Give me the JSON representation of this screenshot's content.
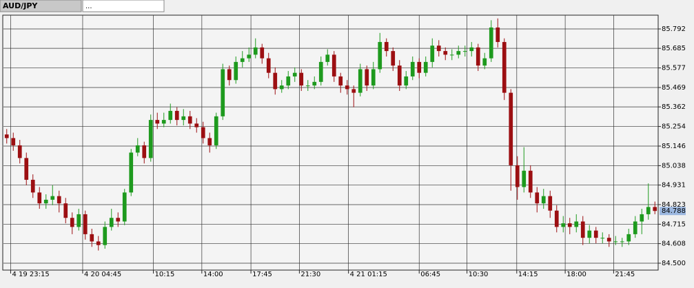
{
  "tabs": [
    "AUD/JPY",
    "..."
  ],
  "chart_data": {
    "type": "candlestick",
    "open": [
      85.21,
      85.19,
      85.15,
      85.08,
      84.96,
      84.89,
      84.83,
      84.85,
      84.87,
      84.83,
      84.75,
      84.7,
      84.77,
      84.66,
      84.62,
      84.6,
      84.7,
      84.75,
      84.73,
      84.89,
      85.11,
      85.15,
      85.08,
      85.29,
      85.27,
      85.29,
      85.34,
      85.29,
      85.31,
      85.27,
      85.25,
      85.19,
      85.15,
      85.31,
      85.57,
      85.51,
      85.61,
      85.63,
      85.65,
      85.69,
      85.63,
      85.55,
      85.46,
      85.48,
      85.53,
      85.55,
      85.48,
      85.48,
      85.5,
      85.61,
      85.65,
      85.53,
      85.48,
      85.46,
      85.44,
      85.57,
      85.48,
      85.57,
      85.72,
      85.67,
      85.59,
      85.48,
      85.53,
      85.61,
      85.55,
      85.61,
      85.7,
      85.67,
      85.65,
      85.65,
      85.67,
      85.67,
      85.69,
      85.59,
      85.63,
      85.8,
      85.72,
      85.44,
      85.04,
      84.92,
      85.01,
      84.89,
      84.83,
      84.87,
      84.79,
      84.7,
      84.72,
      84.7,
      84.73,
      84.64,
      84.68,
      84.64,
      84.64,
      84.62,
      84.62,
      84.62,
      84.66,
      84.73,
      84.77,
      84.81
    ],
    "high": [
      85.24,
      85.22,
      85.18,
      85.11,
      84.99,
      84.92,
      84.88,
      84.93,
      84.9,
      84.86,
      84.78,
      84.8,
      84.79,
      84.69,
      84.65,
      84.73,
      84.8,
      84.78,
      84.91,
      85.13,
      85.19,
      85.17,
      85.32,
      85.33,
      85.33,
      85.38,
      85.36,
      85.35,
      85.34,
      85.3,
      85.28,
      85.22,
      85.33,
      85.6,
      85.59,
      85.64,
      85.67,
      85.69,
      85.74,
      85.71,
      85.66,
      85.58,
      85.51,
      85.56,
      85.58,
      85.57,
      85.51,
      85.53,
      85.64,
      85.68,
      85.67,
      85.55,
      85.51,
      85.48,
      85.6,
      85.59,
      85.61,
      85.77,
      85.74,
      85.69,
      85.62,
      85.56,
      85.64,
      85.63,
      85.64,
      85.74,
      85.73,
      85.69,
      85.68,
      85.7,
      85.7,
      85.72,
      85.71,
      85.66,
      85.84,
      85.85,
      85.74,
      85.46,
      85.09,
      85.14,
      85.04,
      84.92,
      84.91,
      84.9,
      84.82,
      84.76,
      84.75,
      84.77,
      84.76,
      84.71,
      84.7,
      84.67,
      84.66,
      84.65,
      84.64,
      84.69,
      84.76,
      84.8,
      84.94,
      84.84
    ],
    "low": [
      85.16,
      85.12,
      85.05,
      84.93,
      84.86,
      84.8,
      84.8,
      84.82,
      84.78,
      84.72,
      84.66,
      84.68,
      84.63,
      84.59,
      84.57,
      84.58,
      84.68,
      84.7,
      84.71,
      84.87,
      85.09,
      85.05,
      85.06,
      85.24,
      85.25,
      85.27,
      85.26,
      85.26,
      85.24,
      85.22,
      85.16,
      85.11,
      85.13,
      85.29,
      85.48,
      85.49,
      85.58,
      85.61,
      85.63,
      85.6,
      85.52,
      85.43,
      85.44,
      85.46,
      85.5,
      85.45,
      85.45,
      85.46,
      85.48,
      85.59,
      85.5,
      85.44,
      85.43,
      85.36,
      85.42,
      85.45,
      85.46,
      85.55,
      85.64,
      85.56,
      85.45,
      85.46,
      85.51,
      85.52,
      85.53,
      85.58,
      85.64,
      85.62,
      85.62,
      85.63,
      85.64,
      85.64,
      85.56,
      85.57,
      85.61,
      85.69,
      85.4,
      84.9,
      84.85,
      84.89,
      84.86,
      84.78,
      84.8,
      84.75,
      84.67,
      84.67,
      84.66,
      84.67,
      84.6,
      84.61,
      84.61,
      84.61,
      84.59,
      84.6,
      84.59,
      84.6,
      84.64,
      84.66,
      84.74,
      84.77
    ],
    "close": [
      85.19,
      85.15,
      85.08,
      84.96,
      84.89,
      84.83,
      84.85,
      84.87,
      84.83,
      84.75,
      84.7,
      84.77,
      84.66,
      84.62,
      84.6,
      84.7,
      84.75,
      84.73,
      84.89,
      85.11,
      85.15,
      85.08,
      85.29,
      85.27,
      85.29,
      85.34,
      85.29,
      85.31,
      85.27,
      85.25,
      85.19,
      85.15,
      85.31,
      85.57,
      85.51,
      85.61,
      85.63,
      85.65,
      85.69,
      85.63,
      85.55,
      85.46,
      85.48,
      85.53,
      85.55,
      85.48,
      85.48,
      85.5,
      85.61,
      85.65,
      85.53,
      85.48,
      85.46,
      85.44,
      85.57,
      85.48,
      85.57,
      85.72,
      85.67,
      85.59,
      85.48,
      85.53,
      85.61,
      85.55,
      85.61,
      85.7,
      85.67,
      85.65,
      85.65,
      85.67,
      85.67,
      85.69,
      85.59,
      85.63,
      85.8,
      85.72,
      85.44,
      85.04,
      84.92,
      85.01,
      84.89,
      84.83,
      84.87,
      84.79,
      84.7,
      84.72,
      84.7,
      84.73,
      84.64,
      84.68,
      84.64,
      84.64,
      84.62,
      84.62,
      84.62,
      84.66,
      84.73,
      84.77,
      84.81,
      84.788
    ],
    "xlim": [
      0,
      100
    ],
    "xticks": [
      {
        "value": 1.1,
        "label": "4 19 23:15"
      },
      {
        "value": 12.1,
        "label": "4 20 04:45"
      },
      {
        "value": 22.9,
        "label": "10:15"
      },
      {
        "value": 30.3,
        "label": "14:00"
      },
      {
        "value": 37.8,
        "label": "17:45"
      },
      {
        "value": 45.2,
        "label": "21:30"
      },
      {
        "value": 52.7,
        "label": "4 21 01:15"
      },
      {
        "value": 63.5,
        "label": "06:45"
      },
      {
        "value": 70.8,
        "label": "10:30"
      },
      {
        "value": 78.4,
        "label": "14:15"
      },
      {
        "value": 85.8,
        "label": "18:00"
      },
      {
        "value": 93.2,
        "label": "21:45"
      }
    ],
    "ylim": [
      84.462,
      85.868
    ],
    "yticks": [
      {
        "value": 84.5,
        "label": "84.500"
      },
      84.608,
      84.715,
      84.823,
      84.931,
      85.038,
      85.146,
      85.254,
      85.362,
      85.469,
      85.577,
      85.685,
      85.792
    ],
    "grid": true,
    "up_color": "#1e9a1e",
    "down_color": "#9c0f12"
  }
}
